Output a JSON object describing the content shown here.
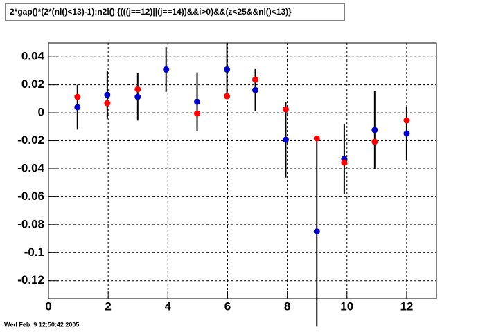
{
  "chart_data": {
    "type": "scatter",
    "title": "2*gap()*(2*(nl()<13)-1):n2l() {(((j==12)||(j==14))&&i>0)&&(z<25&&nl()<13)}",
    "footer": "Wed Feb  9 12:50:42 2005",
    "x": [
      0.97,
      1.97,
      2.99,
      3.94,
      4.98,
      5.98,
      6.93,
      7.95,
      8.99,
      9.91,
      10.93,
      12.0
    ],
    "series": [
      {
        "color": "#0000cc",
        "values": [
          0.004,
          0.0128,
          0.0114,
          0.031,
          0.0079,
          0.031,
          0.0163,
          -0.0193,
          -0.0849,
          -0.033,
          -0.0123,
          -0.0148
        ],
        "errors": [
          0.016,
          0.017,
          0.017,
          0.016,
          0.021,
          0.019,
          0.015,
          0.027,
          0.068,
          0.025,
          0.028,
          0.019
        ]
      },
      {
        "color": "#ff0000",
        "values": [
          0.0114,
          0.0069,
          0.0168,
          null,
          -0.0005,
          0.0119,
          0.0237,
          0.0025,
          -0.0183,
          -0.0356,
          -0.0207,
          -0.0054
        ]
      }
    ],
    "xlim": [
      0,
      13
    ],
    "ylim": [
      -0.133,
      0.05
    ],
    "xticks": [
      0,
      2,
      4,
      6,
      8,
      10,
      12
    ],
    "yticks": [
      -0.12,
      -0.1,
      -0.08,
      -0.06,
      -0.04,
      -0.02,
      0,
      0.02,
      0.04
    ],
    "grid": true
  }
}
